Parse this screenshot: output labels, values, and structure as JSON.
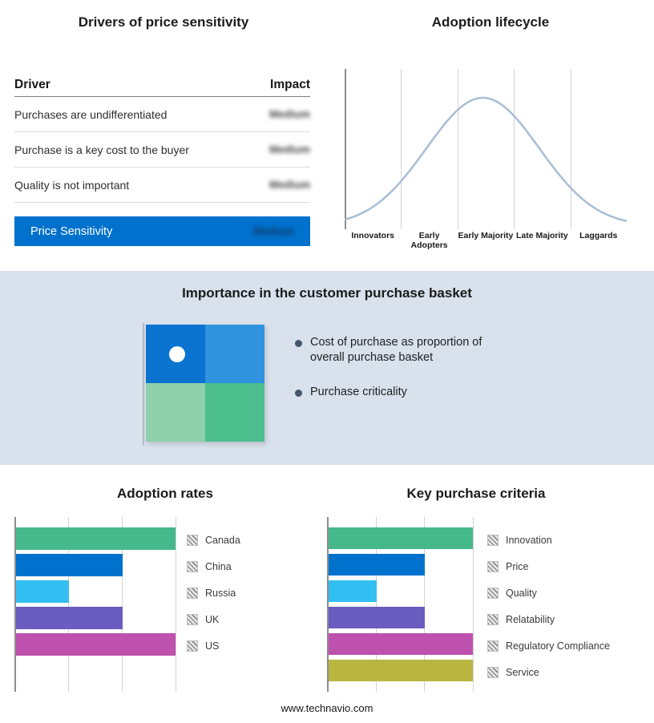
{
  "page": {
    "footer": "www.technavio.com"
  },
  "drivers_panel": {
    "title": "Drivers of price sensitivity",
    "col_driver": "Driver",
    "col_impact": "Impact",
    "rows": [
      {
        "driver": "Purchases are undifferentiated",
        "impact": "Medium"
      },
      {
        "driver": "Purchase is a key cost to the buyer",
        "impact": "Medium"
      },
      {
        "driver": "Quality is not important",
        "impact": "Medium"
      }
    ],
    "summary": {
      "label": "Price Sensitivity",
      "impact": "Medium",
      "color": "#0071cd"
    }
  },
  "basket_panel": {
    "title": "Importance in the customer purchase basket",
    "bullets": [
      "Cost of purchase as proportion of overall purchase basket",
      "Purchase criticality"
    ],
    "quadrant_colors": [
      "#0b74d0",
      "#2f93dd",
      "#8ed0ab",
      "#4dbe8d"
    ]
  },
  "chart_data": [
    {
      "type": "line",
      "title": "Adoption lifecycle",
      "x_stage_labels": [
        "Innovators",
        "Early Adopters",
        "Early Majority",
        "Late Majority",
        "Laggards"
      ],
      "curve": {
        "shape": "bell",
        "mean": 0.49,
        "sigma": 0.2
      },
      "line_color": "#a9bdd5",
      "grid": true
    },
    {
      "type": "bar",
      "title": "Adoption rates",
      "orientation": "horizontal",
      "categories": [
        "Canada",
        "China",
        "Russia",
        "UK",
        "US"
      ],
      "values": [
        3,
        2,
        1,
        2,
        3
      ],
      "colors": [
        "#46b98c",
        "#0072cd",
        "#33bef2",
        "#6a5cc0",
        "#bf51ae"
      ],
      "xlim": [
        0,
        3
      ],
      "grid": true,
      "legend_position": "right"
    },
    {
      "type": "bar",
      "title": "Key purchase criteria",
      "orientation": "horizontal",
      "categories": [
        "Innovation",
        "Price",
        "Quality",
        "Relatability",
        "Regulatory Compliance",
        "Service"
      ],
      "values": [
        3,
        2,
        1,
        2,
        3,
        3
      ],
      "colors": [
        "#46b98c",
        "#0072cd",
        "#33bef2",
        "#6a5cc0",
        "#bf51ae",
        "#b9b640"
      ],
      "xlim": [
        0,
        3
      ],
      "grid": true,
      "legend_position": "right"
    }
  ]
}
